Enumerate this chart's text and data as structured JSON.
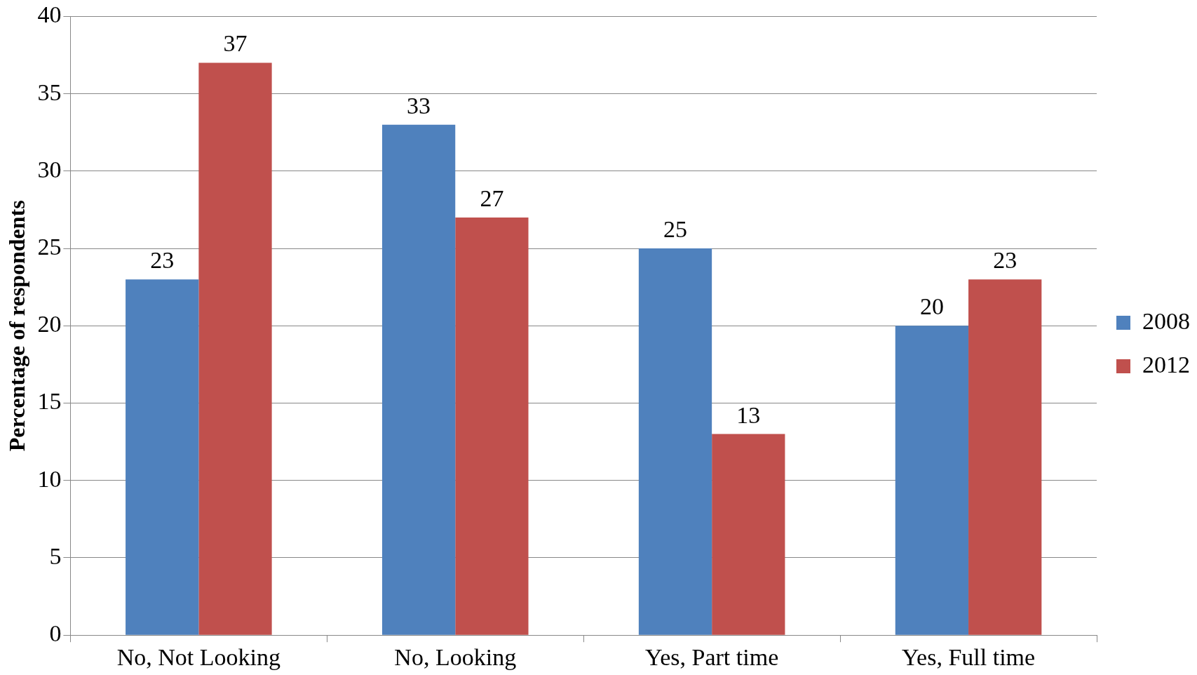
{
  "chart_data": {
    "type": "bar",
    "ylabel": "Percentage of respondents",
    "categories": [
      "No, Not Looking",
      "No, Looking",
      "Yes, Part time",
      "Yes, Full time"
    ],
    "series": [
      {
        "name": "2008",
        "color": "#4f81bd",
        "values": [
          23,
          33,
          25,
          20
        ]
      },
      {
        "name": "2012",
        "color": "#c0504d",
        "values": [
          37,
          27,
          13,
          23
        ]
      }
    ],
    "ylim": [
      0,
      40
    ],
    "yticks": [
      0,
      5,
      10,
      15,
      20,
      25,
      30,
      35,
      40
    ],
    "grid": "y",
    "legend": "right",
    "data_labels": true
  }
}
